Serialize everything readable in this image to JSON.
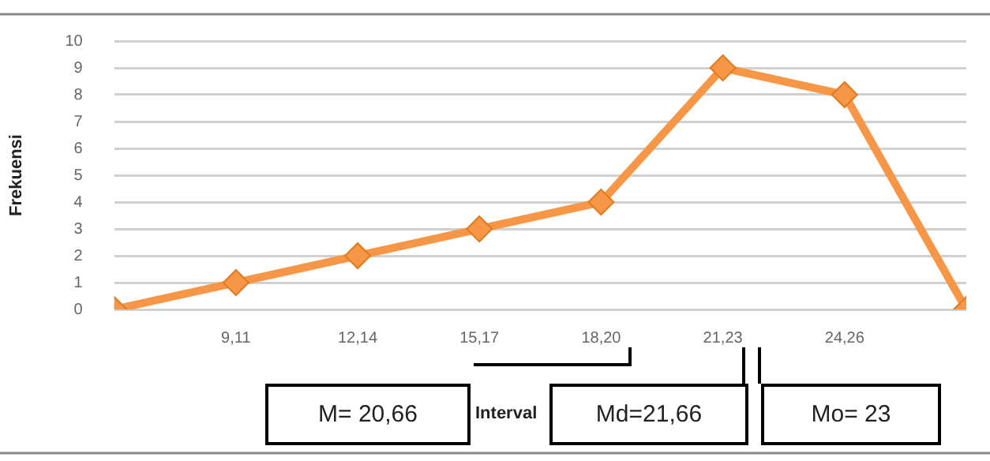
{
  "chart_data": {
    "type": "line",
    "xlabel": "Interval",
    "ylabel": "Frekuensi",
    "categories": [
      null,
      "9,11",
      "12,14",
      "15,17",
      "18,20",
      "21,23",
      "24,26",
      null
    ],
    "series": [
      {
        "color": "#f79646",
        "values": [
          0,
          1,
          2,
          3,
          4,
          9,
          8,
          0
        ]
      }
    ],
    "ylim": [
      0,
      10
    ],
    "yticks": [
      0,
      1,
      2,
      3,
      4,
      5,
      6,
      7,
      8,
      9,
      10
    ],
    "grid": "y",
    "marker": "diamond",
    "line_style": "solid",
    "legend": false,
    "annotations": [
      "M= 20,66",
      "Md=21,66",
      "Mo= 23"
    ]
  }
}
